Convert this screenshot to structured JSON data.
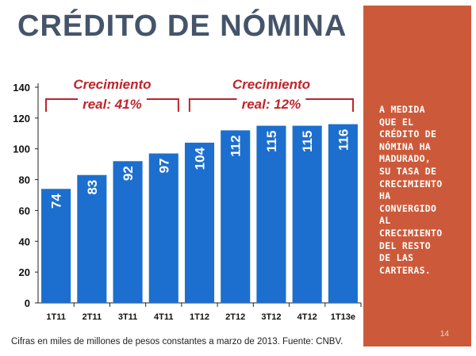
{
  "slide": {
    "title": "CRÉDITO DE NÓMINA",
    "side_text": "A MEDIDA\nQUE EL\nCRÉDITO DE\nNÓMINA HA\nMADURADO,\nSU TASA DE\nCRECIMIENTO\nHA\nCONVERGIDO\nAL\nCRECIMIENTO\nDEL RESTO\nDE LAS\nCARTERAS.",
    "page_number": "14",
    "footnote": "Cifras en miles de millones de pesos constantes a marzo de 2013. Fuente: CNBV."
  },
  "colors": {
    "bar": "#1c6fce",
    "title": "#44546a",
    "panel": "#cc5a3a",
    "annotation": "#c0242b"
  },
  "chart_data": {
    "type": "bar",
    "categories": [
      "1T11",
      "2T11",
      "3T11",
      "4T11",
      "1T12",
      "2T12",
      "3T12",
      "4T12",
      "1T13e"
    ],
    "values": [
      74,
      83,
      92,
      97,
      104,
      112,
      115,
      115,
      116
    ],
    "data_labels": [
      "74",
      "83",
      "92",
      "97",
      "104",
      "112",
      "115",
      "115",
      "116"
    ],
    "ylim": [
      0,
      140
    ],
    "yticks": [
      0,
      20,
      40,
      60,
      80,
      100,
      120,
      140
    ],
    "grid": false,
    "annotations": [
      {
        "line1": "Crecimiento",
        "line2": "real: 41%",
        "from": 0,
        "to": 4
      },
      {
        "line1": "Crecimiento",
        "line2": "real: 12%",
        "from": 4,
        "to": 8
      }
    ]
  }
}
